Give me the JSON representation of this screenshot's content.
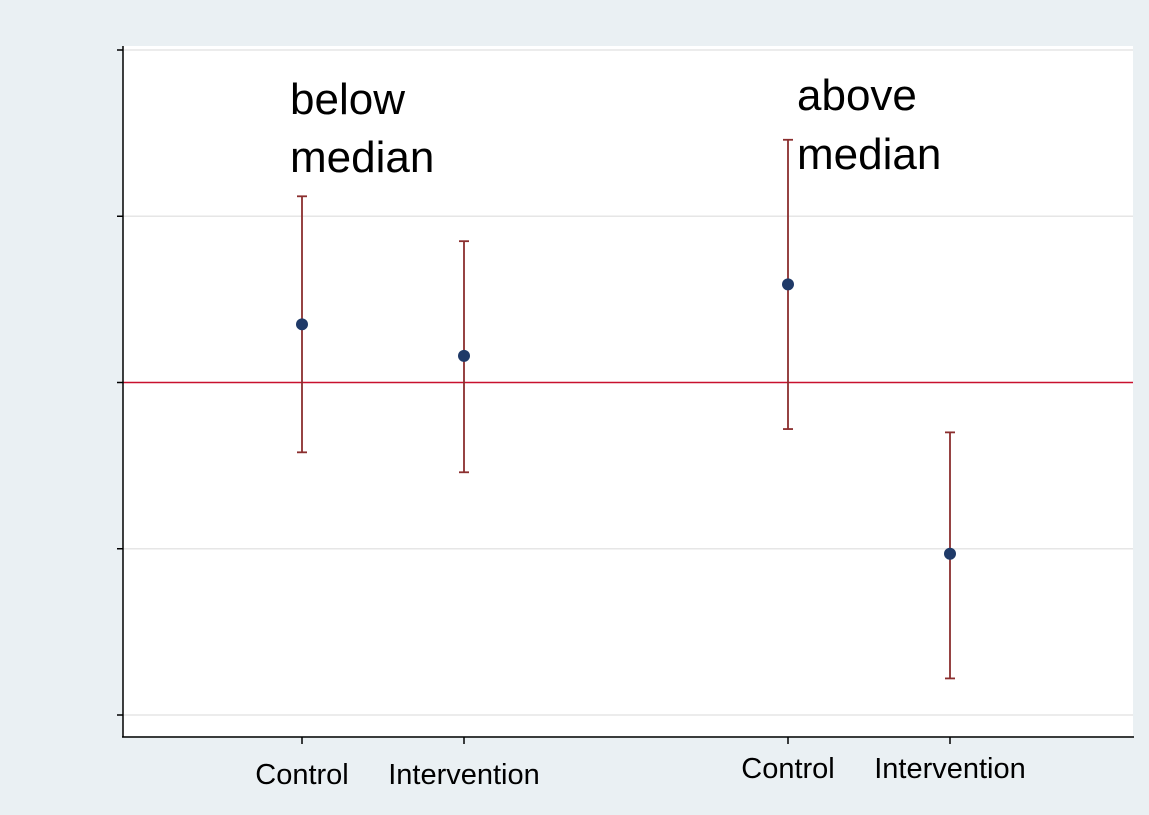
{
  "chart_data": {
    "type": "scatter",
    "title": "",
    "xlabel": "",
    "ylabel": "",
    "ylim": [
      -2,
      2
    ],
    "y_ticks": [
      -2,
      -1,
      0,
      1,
      2
    ],
    "y_tick_labels_shown": false,
    "grid": true,
    "reference_line": {
      "y": 0,
      "color": "#c8102e"
    },
    "groups": [
      {
        "label": "below\nmedian",
        "label_text": "below median"
      },
      {
        "label": "above\nmedian",
        "label_text": "above median"
      }
    ],
    "points": [
      {
        "group": "below median",
        "x_label": "Control",
        "estimate": 0.35,
        "ci_low": -0.42,
        "ci_high": 1.12
      },
      {
        "group": "below median",
        "x_label": "Intervention",
        "estimate": 0.16,
        "ci_low": -0.54,
        "ci_high": 0.85
      },
      {
        "group": "above median",
        "x_label": "Control",
        "estimate": 0.59,
        "ci_low": -0.28,
        "ci_high": 1.46
      },
      {
        "group": "above median",
        "x_label": "Intervention",
        "estimate": -1.03,
        "ci_low": -1.78,
        "ci_high": -0.3
      }
    ],
    "colors": {
      "marker": "#1f3a68",
      "ci": "#8b2e2e",
      "reference": "#c8102e",
      "grid": "#e6e6e6"
    }
  }
}
